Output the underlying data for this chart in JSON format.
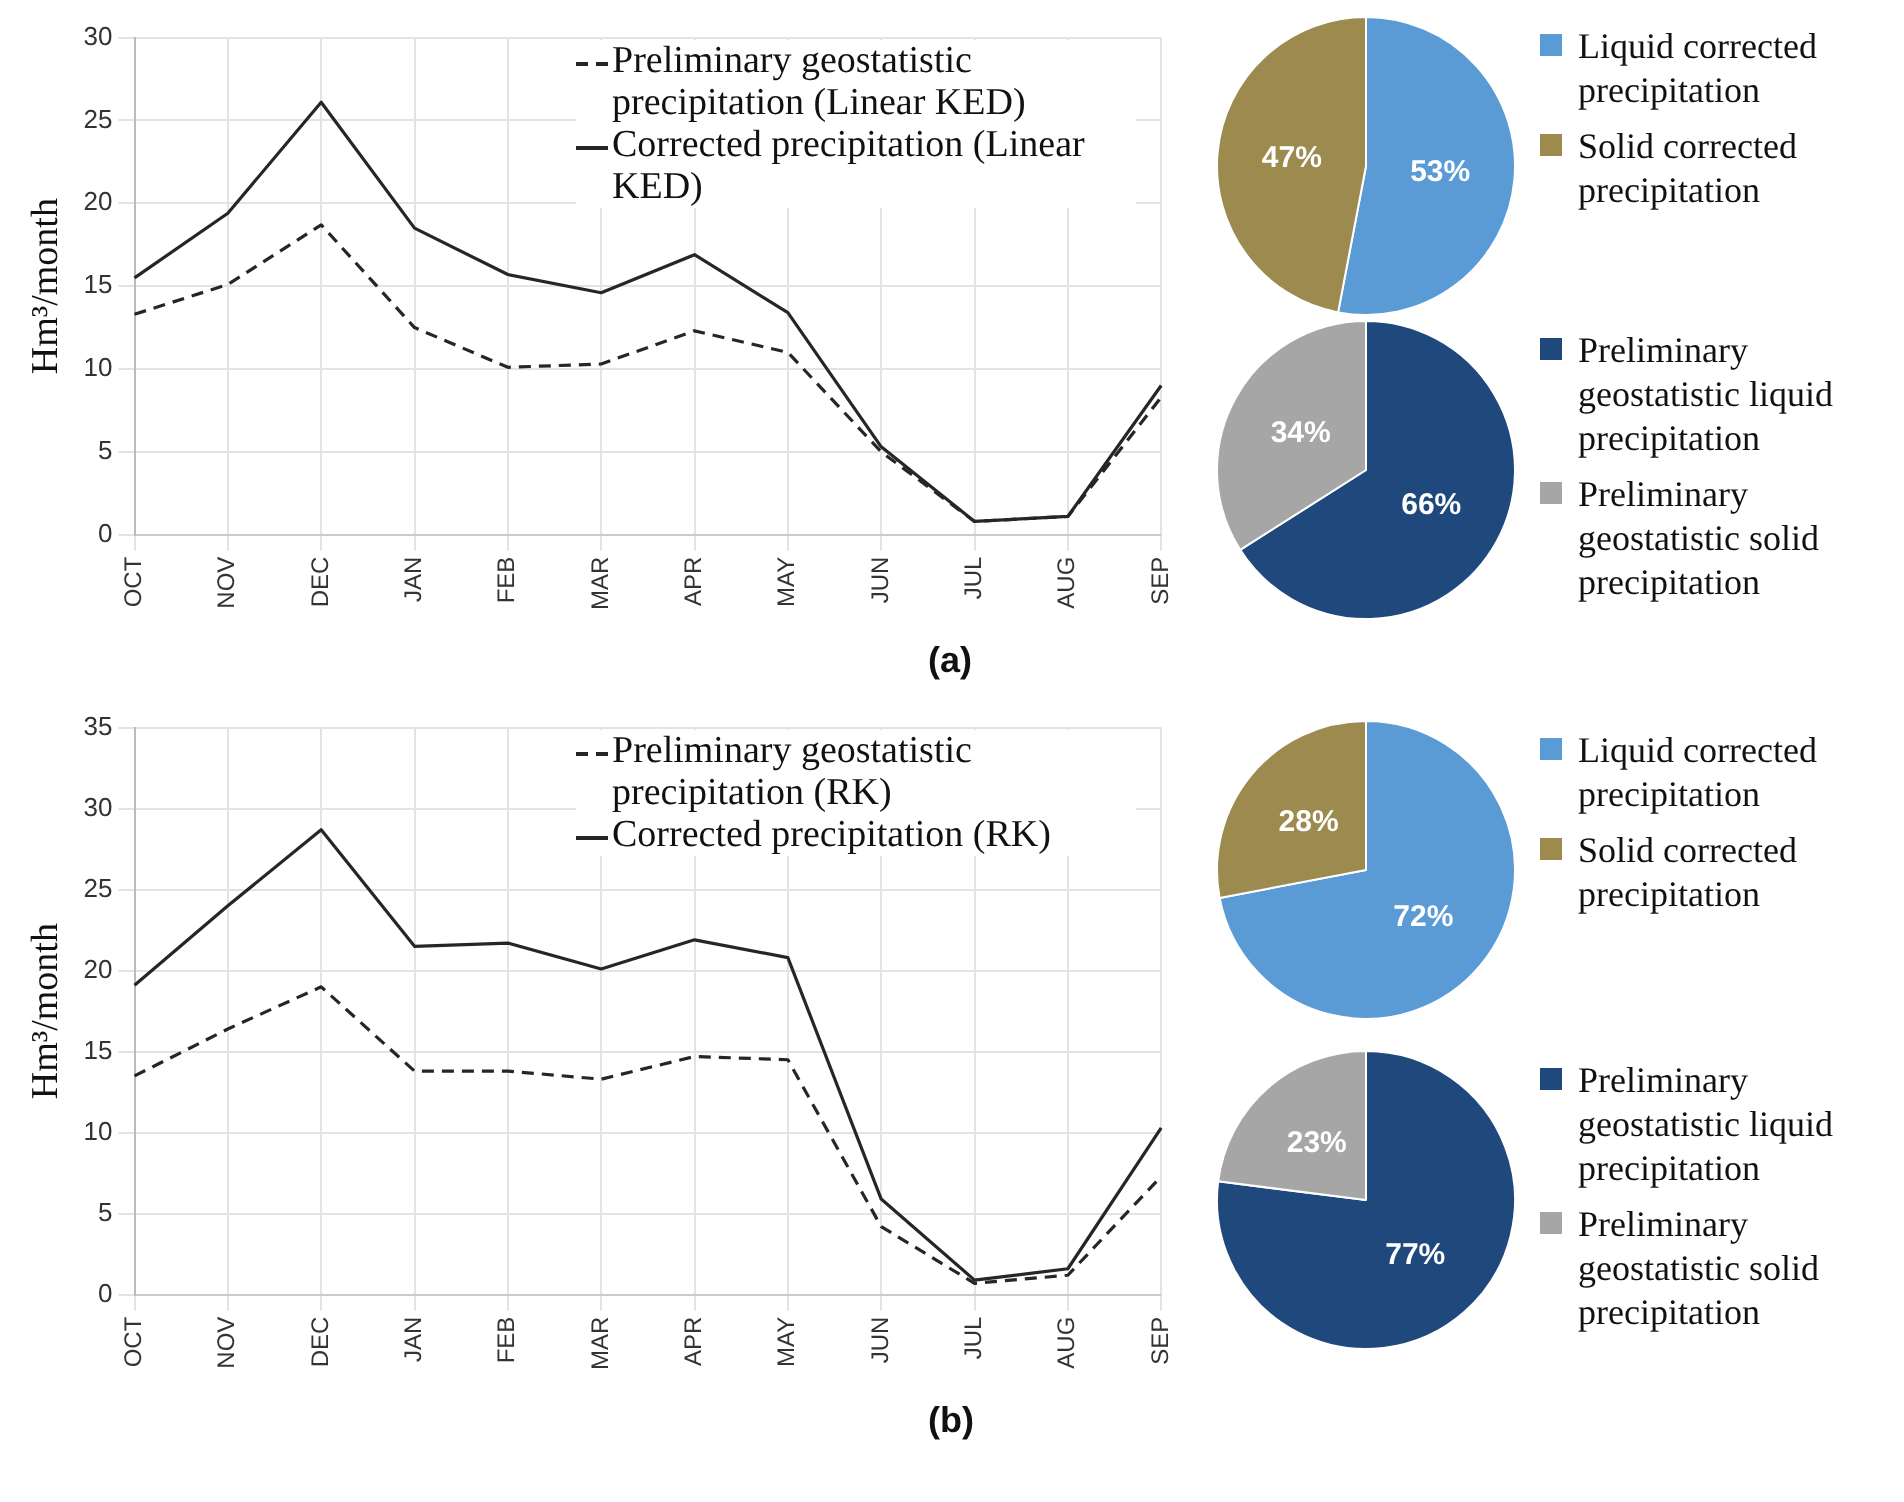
{
  "chart_data": [
    {
      "type": "line",
      "ylabel": "Hm³/month",
      "categories": [
        "OCT",
        "NOV",
        "DEC",
        "JAN",
        "FEB",
        "MAR",
        "APR",
        "MAY",
        "JUN",
        "JUL",
        "AUG",
        "SEP"
      ],
      "ylim": [
        0,
        30
      ],
      "yticks": [
        0,
        5,
        10,
        15,
        20,
        25,
        30
      ],
      "grid": true,
      "legend": "top right",
      "annotations": [
        "(a)"
      ],
      "series": [
        {
          "name": "Preliminary geostatistic precipitation (Linear KED)",
          "color": "#262626",
          "line_style": "dashed",
          "values": [
            13.3,
            15.1,
            18.7,
            12.5,
            10.1,
            10.3,
            12.3,
            11.0,
            5.0,
            0.8,
            1.1,
            8.3
          ]
        },
        {
          "name": "Corrected precipitation (Linear KED)",
          "color": "#262626",
          "line_style": "solid",
          "values": [
            15.5,
            19.4,
            26.1,
            18.5,
            15.7,
            14.6,
            16.9,
            13.4,
            5.3,
            0.8,
            1.1,
            9.0
          ]
        }
      ]
    },
    {
      "type": "pie",
      "legend": "right",
      "categories": [
        "Liquid corrected precipitation",
        "Solid corrected precipitation"
      ],
      "values": [
        53,
        47
      ],
      "value_labels": [
        "53%",
        "47%"
      ],
      "colors": [
        "#5b9bd5",
        "#9c8a4e"
      ]
    },
    {
      "type": "pie",
      "legend": "right",
      "categories": [
        "Preliminary geostatistic liquid precipitation",
        "Preliminary geostatistic solid precipitation"
      ],
      "values": [
        66,
        34
      ],
      "value_labels": [
        "66%",
        "34%"
      ],
      "colors": [
        "#1f497d",
        "#a6a6a6"
      ]
    },
    {
      "type": "line",
      "ylabel": "Hm³/month",
      "categories": [
        "OCT",
        "NOV",
        "DEC",
        "JAN",
        "FEB",
        "MAR",
        "APR",
        "MAY",
        "JUN",
        "JUL",
        "AUG",
        "SEP"
      ],
      "ylim": [
        0,
        35
      ],
      "yticks": [
        0,
        5,
        10,
        15,
        20,
        25,
        30,
        35
      ],
      "grid": true,
      "legend": "top right",
      "annotations": [
        "(b)"
      ],
      "series": [
        {
          "name": "Preliminary geostatistic precipitation (RK)",
          "color": "#262626",
          "line_style": "dashed",
          "values": [
            13.5,
            16.4,
            19.0,
            13.8,
            13.8,
            13.3,
            14.7,
            14.5,
            4.2,
            0.7,
            1.2,
            7.3
          ]
        },
        {
          "name": "Corrected precipitation (RK)",
          "color": "#262626",
          "line_style": "solid",
          "values": [
            19.1,
            24.0,
            28.7,
            21.5,
            21.7,
            20.1,
            21.9,
            20.8,
            5.9,
            0.9,
            1.6,
            10.3
          ]
        }
      ]
    },
    {
      "type": "pie",
      "legend": "right",
      "categories": [
        "Liquid corrected precipitation",
        "Solid corrected precipitation"
      ],
      "values": [
        72,
        28
      ],
      "value_labels": [
        "72%",
        "28%"
      ],
      "colors": [
        "#5b9bd5",
        "#9c8a4e"
      ]
    },
    {
      "type": "pie",
      "legend": "right",
      "categories": [
        "Preliminary geostatistic liquid precipitation",
        "Preliminary geostatistic solid precipitation"
      ],
      "values": [
        77,
        23
      ],
      "value_labels": [
        "77%",
        "23%"
      ],
      "colors": [
        "#1f497d",
        "#a6a6a6"
      ]
    }
  ]
}
